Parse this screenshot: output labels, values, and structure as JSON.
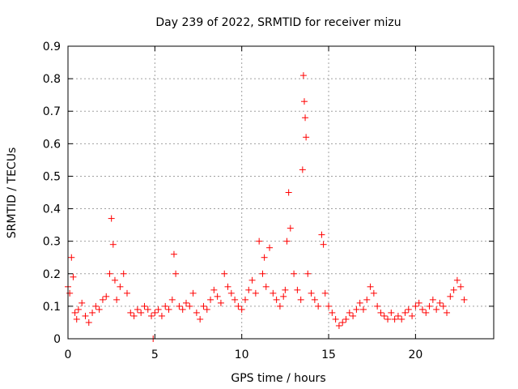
{
  "chart_data": {
    "type": "scatter",
    "title": "Day 239 of 2022, SRMTID for receiver mizu",
    "xlabel": "GPS time / hours",
    "ylabel": "SRMTID / TECUs",
    "xlim": [
      0,
      24.5
    ],
    "ylim": [
      0,
      0.9
    ],
    "xticks": [
      0,
      5,
      10,
      15,
      20
    ],
    "xtick_labels": [
      "0",
      "5",
      "10",
      "15",
      "20"
    ],
    "yticks": [
      0,
      0.1,
      0.2,
      0.3,
      0.4,
      0.5,
      0.6,
      0.7,
      0.8,
      0.9
    ],
    "ytick_labels": [
      "0",
      "0.1",
      "0.2",
      "0.3",
      "0.4",
      "0.5",
      "0.6",
      "0.7",
      "0.8",
      "0.9"
    ],
    "grid": true,
    "marker": "+",
    "marker_color": "#ff0000",
    "series": [
      {
        "name": "SRMTID",
        "x": [
          0.0,
          0.1,
          0.2,
          0.3,
          0.4,
          0.5,
          0.6,
          0.8,
          1.0,
          1.2,
          1.4,
          1.6,
          1.8,
          2.0,
          2.2,
          2.4,
          2.5,
          2.6,
          2.7,
          2.8,
          3.0,
          3.2,
          3.4,
          3.6,
          3.8,
          4.0,
          4.2,
          4.4,
          4.6,
          4.8,
          4.9,
          5.0,
          5.2,
          5.4,
          5.6,
          5.8,
          6.0,
          6.1,
          6.2,
          6.4,
          6.6,
          6.8,
          7.0,
          7.2,
          7.4,
          7.6,
          7.8,
          8.0,
          8.2,
          8.4,
          8.6,
          8.8,
          9.0,
          9.2,
          9.4,
          9.6,
          9.8,
          10.0,
          10.2,
          10.4,
          10.6,
          10.8,
          11.0,
          11.2,
          11.3,
          11.4,
          11.6,
          11.8,
          12.0,
          12.2,
          12.4,
          12.5,
          12.6,
          12.7,
          12.8,
          13.0,
          13.2,
          13.4,
          13.5,
          13.55,
          13.6,
          13.65,
          13.7,
          13.8,
          14.0,
          14.2,
          14.4,
          14.6,
          14.7,
          14.8,
          15.0,
          15.2,
          15.4,
          15.6,
          15.8,
          16.0,
          16.2,
          16.4,
          16.6,
          16.8,
          17.0,
          17.2,
          17.4,
          17.6,
          17.8,
          18.0,
          18.2,
          18.4,
          18.6,
          18.8,
          19.0,
          19.2,
          19.4,
          19.6,
          19.8,
          20.0,
          20.2,
          20.4,
          20.6,
          20.8,
          21.0,
          21.2,
          21.4,
          21.6,
          21.8,
          22.0,
          22.2,
          22.4,
          22.6,
          22.8
        ],
        "y": [
          0.16,
          0.14,
          0.25,
          0.19,
          0.08,
          0.06,
          0.09,
          0.11,
          0.07,
          0.05,
          0.08,
          0.1,
          0.09,
          0.12,
          0.13,
          0.2,
          0.37,
          0.29,
          0.18,
          0.12,
          0.16,
          0.2,
          0.14,
          0.08,
          0.07,
          0.09,
          0.08,
          0.1,
          0.09,
          0.07,
          0.0,
          0.08,
          0.09,
          0.07,
          0.1,
          0.09,
          0.12,
          0.26,
          0.2,
          0.1,
          0.09,
          0.11,
          0.1,
          0.14,
          0.08,
          0.06,
          0.1,
          0.09,
          0.12,
          0.15,
          0.13,
          0.11,
          0.2,
          0.16,
          0.14,
          0.12,
          0.1,
          0.09,
          0.12,
          0.15,
          0.18,
          0.14,
          0.3,
          0.2,
          0.25,
          0.16,
          0.28,
          0.14,
          0.12,
          0.1,
          0.13,
          0.15,
          0.3,
          0.45,
          0.34,
          0.2,
          0.15,
          0.12,
          0.52,
          0.81,
          0.73,
          0.68,
          0.62,
          0.2,
          0.14,
          0.12,
          0.1,
          0.32,
          0.29,
          0.14,
          0.1,
          0.08,
          0.06,
          0.04,
          0.05,
          0.06,
          0.08,
          0.07,
          0.09,
          0.11,
          0.09,
          0.12,
          0.16,
          0.14,
          0.1,
          0.08,
          0.07,
          0.06,
          0.08,
          0.06,
          0.07,
          0.06,
          0.08,
          0.09,
          0.07,
          0.1,
          0.11,
          0.09,
          0.08,
          0.1,
          0.12,
          0.09,
          0.11,
          0.1,
          0.08,
          0.13,
          0.15,
          0.18,
          0.16,
          0.12
        ]
      }
    ]
  }
}
